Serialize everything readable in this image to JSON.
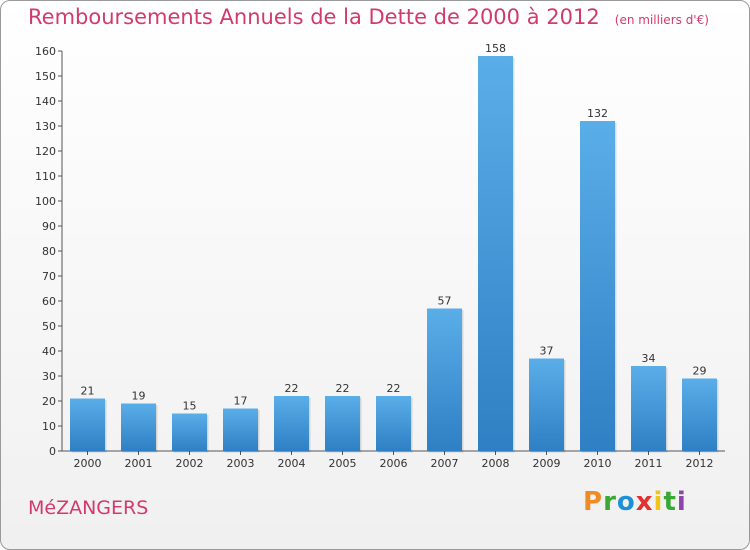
{
  "header": {
    "title": "Remboursements Annuels de la Dette de 2000 à 2012",
    "unit": "(en milliers d'€)"
  },
  "footer": {
    "commune": "MéZANGERS",
    "brand_letters": [
      "P",
      "r",
      "o",
      "x",
      "i",
      "t",
      "i"
    ],
    "brand_colors": [
      "#f08a24",
      "#39a935",
      "#1e90d8",
      "#e2312f",
      "#f0c419",
      "#39a935",
      "#8e44ad"
    ]
  },
  "colors": {
    "accent": "#d23a6e",
    "bar_top": "#5aaee8",
    "bar_bottom": "#2f7fc4"
  },
  "chart_data": {
    "type": "bar",
    "title": "Remboursements Annuels de la Dette de 2000 à 2012",
    "categories": [
      "2000",
      "2001",
      "2002",
      "2003",
      "2004",
      "2005",
      "2006",
      "2007",
      "2008",
      "2009",
      "2010",
      "2011",
      "2012"
    ],
    "values": [
      21,
      19,
      15,
      17,
      22,
      22,
      22,
      57,
      158,
      37,
      132,
      34,
      29
    ],
    "ylim": [
      0,
      160
    ],
    "yticks": [
      0,
      10,
      20,
      30,
      40,
      50,
      60,
      70,
      80,
      90,
      100,
      110,
      120,
      130,
      140,
      150,
      160
    ],
    "grid": false
  }
}
